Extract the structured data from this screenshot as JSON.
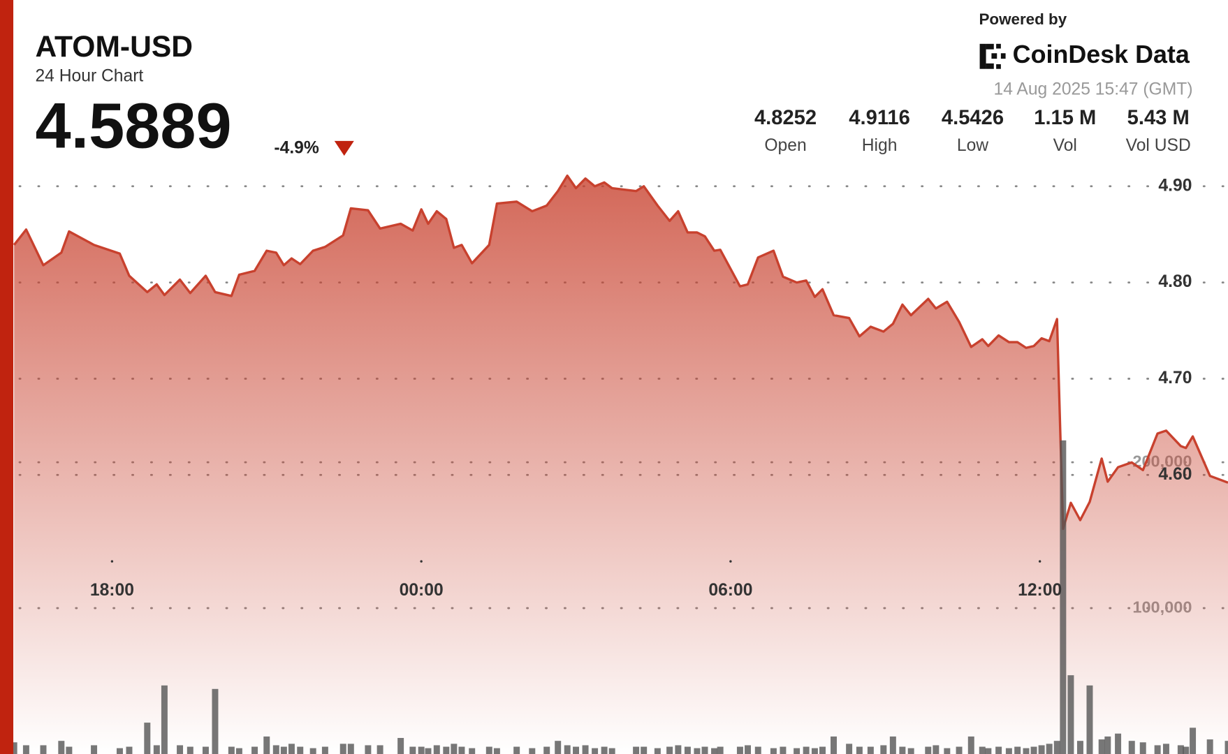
{
  "header": {
    "title": "ATOM-USD",
    "subtitle": "24 Hour Chart",
    "price": "4.5889",
    "change": "-4.9%",
    "powered_by": "Powered by",
    "brand": "CoinDesk Data",
    "timestamp": "14 Aug 2025 15:47 (GMT)"
  },
  "stats": [
    {
      "value": "4.8252",
      "label": "Open"
    },
    {
      "value": "4.9116",
      "label": "High"
    },
    {
      "value": "4.5426",
      "label": "Low"
    },
    {
      "value": "1.15 M",
      "label": "Vol"
    },
    {
      "value": "5.43 M",
      "label": "Vol USD"
    }
  ],
  "chart_data": {
    "type": "line",
    "x": [
      "16:06",
      "16:20",
      "16:40",
      "17:01",
      "17:10",
      "17:39",
      "18:09",
      "18:20",
      "18:41",
      "18:52",
      "19:01",
      "19:19",
      "19:31",
      "19:49",
      "20:00",
      "20:19",
      "20:28",
      "20:46",
      "21:00",
      "21:11",
      "21:20",
      "21:29",
      "21:39",
      "21:54",
      "22:08",
      "22:29",
      "22:38",
      "22:58",
      "23:12",
      "23:36",
      "23:50",
      "00:00",
      "00:08",
      "00:18",
      "00:29",
      "00:38",
      "00:47",
      "00:59",
      "01:19",
      "01:28",
      "01:51",
      "02:09",
      "02:26",
      "02:39",
      "02:50",
      "03:00",
      "03:11",
      "03:22",
      "03:33",
      "03:42",
      "04:10",
      "04:19",
      "04:35",
      "04:49",
      "04:59",
      "05:10",
      "05:21",
      "05:30",
      "05:41",
      "05:48",
      "06:11",
      "06:20",
      "06:32",
      "06:50",
      "07:01",
      "07:17",
      "07:28",
      "07:38",
      "07:47",
      "08:00",
      "08:18",
      "08:30",
      "08:43",
      "08:58",
      "09:09",
      "09:20",
      "09:30",
      "09:50",
      "09:59",
      "10:12",
      "10:26",
      "10:40",
      "10:53",
      "11:00",
      "11:12",
      "11:24",
      "11:34",
      "11:44",
      "11:53",
      "12:02",
      "12:11",
      "12:20",
      "12:27",
      "12:36",
      "12:47",
      "12:58",
      "13:12",
      "13:19",
      "13:31",
      "13:47",
      "14:00",
      "14:17",
      "14:27",
      "14:44",
      "14:50",
      "14:58",
      "15:18",
      "15:39"
    ],
    "series": [
      {
        "color": "#c8412e",
        "values": [
          4.839,
          4.855,
          4.818,
          4.831,
          4.853,
          4.839,
          4.83,
          4.807,
          4.79,
          4.798,
          4.787,
          4.803,
          4.789,
          4.807,
          4.79,
          4.786,
          4.808,
          4.812,
          4.833,
          4.831,
          4.818,
          4.825,
          4.819,
          4.833,
          4.837,
          4.849,
          4.877,
          4.875,
          4.856,
          4.861,
          4.854,
          4.876,
          4.861,
          4.874,
          4.866,
          4.836,
          4.839,
          4.82,
          4.839,
          4.882,
          4.884,
          4.874,
          4.88,
          4.895,
          4.911,
          4.898,
          4.908,
          4.9,
          4.904,
          4.898,
          4.895,
          4.9,
          4.88,
          4.864,
          4.874,
          4.852,
          4.852,
          4.848,
          4.833,
          4.834,
          4.796,
          4.798,
          4.826,
          4.833,
          4.806,
          4.8,
          4.802,
          4.785,
          4.793,
          4.766,
          4.763,
          4.744,
          4.754,
          4.749,
          4.757,
          4.777,
          4.766,
          4.783,
          4.773,
          4.78,
          4.759,
          4.733,
          4.741,
          4.734,
          4.745,
          4.738,
          4.738,
          4.732,
          4.734,
          4.742,
          4.739,
          4.762,
          4.544,
          4.571,
          4.553,
          4.572,
          4.617,
          4.593,
          4.608,
          4.613,
          4.605,
          4.643,
          4.646,
          4.63,
          4.628,
          4.64,
          4.599,
          4.592
        ]
      },
      {
        "color": "#555555",
        "axis": "y2",
        "values": [
          8000,
          6000,
          6000,
          9000,
          5000,
          6000,
          4000,
          5000,
          21500,
          6000,
          47000,
          6000,
          5000,
          5000,
          44600,
          5000,
          4000,
          5000,
          12000,
          6000,
          5000,
          7000,
          5000,
          4000,
          5000,
          7000,
          7000,
          6000,
          6000,
          11000,
          5000,
          5000,
          4000,
          6000,
          5000,
          7000,
          5000,
          4000,
          5000,
          4000,
          5000,
          4000,
          5000,
          9000,
          6000,
          5000,
          6000,
          4000,
          5000,
          4000,
          5000,
          5000,
          4000,
          5000,
          6000,
          5000,
          4000,
          5000,
          4000,
          5000,
          5000,
          6000,
          5000,
          4000,
          5000,
          4000,
          5000,
          4000,
          5000,
          12000,
          7000,
          5000,
          5000,
          6000,
          12000,
          5000,
          4000,
          5000,
          6000,
          4000,
          5000,
          12000,
          5000,
          4000,
          5000,
          4000,
          5000,
          4000,
          5000,
          6000,
          7000,
          9000,
          215000,
          54000,
          9000,
          47000,
          10000,
          12000,
          14000,
          9000,
          8000,
          6000,
          7000,
          6000,
          5000,
          18000,
          10000,
          9000
        ]
      }
    ],
    "xlim": [
      "16:06",
      "15:39"
    ],
    "xticks": [
      "18:00",
      "00:00",
      "06:00",
      "12:00"
    ],
    "ylim": [
      4.31,
      4.93
    ],
    "yticks": [
      {
        "value": 4.6,
        "label": "4.60"
      },
      {
        "value": 4.7,
        "label": "4.70"
      },
      {
        "value": 4.8,
        "label": "4.80"
      },
      {
        "value": 4.9,
        "label": "4.90"
      }
    ],
    "y2lim": [
      0,
      409000
    ],
    "y2ticks": [
      {
        "value": 100000,
        "label": "100,000"
      },
      {
        "value": 200000,
        "label": "200,000"
      }
    ],
    "grid": true
  }
}
